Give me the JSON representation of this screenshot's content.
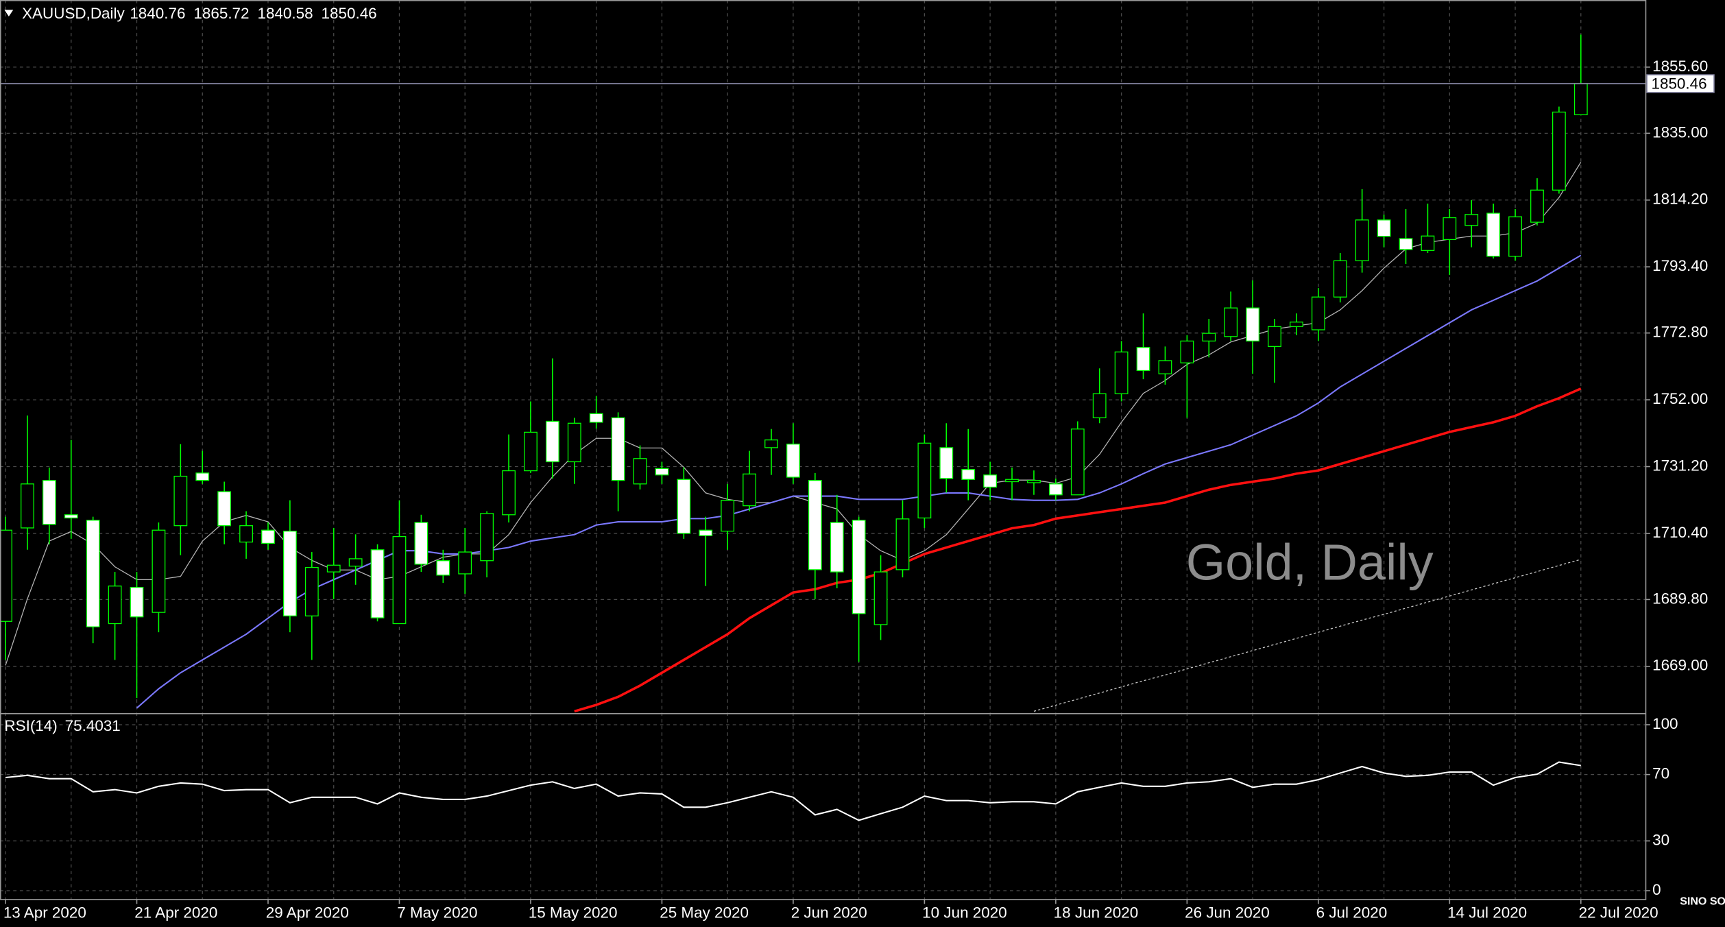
{
  "chart_data": [
    {
      "type": "candlestick",
      "title": "XAUUSD,Daily",
      "annotation": "Gold, Daily",
      "watermark": "SINO SOUND",
      "categories": [
        "13 Apr 2020",
        null,
        null,
        null,
        null,
        null,
        "21 Apr 2020",
        null,
        null,
        null,
        null,
        null,
        "29 Apr 2020",
        null,
        null,
        null,
        null,
        null,
        "7 May 2020",
        null,
        null,
        null,
        null,
        null,
        "15 May 2020",
        null,
        null,
        null,
        null,
        null,
        "25 May 2020",
        null,
        null,
        null,
        null,
        null,
        "2 Jun 2020",
        null,
        null,
        null,
        null,
        null,
        "10 Jun 2020",
        null,
        null,
        null,
        null,
        null,
        "18 Jun 2020",
        null,
        null,
        null,
        null,
        null,
        "26 Jun 2020",
        null,
        null,
        null,
        null,
        null,
        "6 Jul 2020",
        null,
        null,
        null,
        null,
        null,
        "14 Jul 2020",
        null,
        null,
        null,
        null,
        null,
        "22 Jul 2020"
      ],
      "open": [
        1683.0,
        1712.1,
        1726.9,
        1716.2,
        1714.5,
        1682.3,
        1693.6,
        1685.8,
        1712.8,
        1729.2,
        1723.4,
        1707.7,
        1711.4,
        1711.1,
        1684.7,
        1698.4,
        1700.2,
        1705.3,
        1682.3,
        1713.8,
        1701.9,
        1697.8,
        1701.9,
        1716.2,
        1729.9,
        1745.3,
        1732.7,
        1747.7,
        1746.4,
        1725.8,
        1730.6,
        1727.2,
        1711.4,
        1711.1,
        1719.0,
        1737.1,
        1738.2,
        1726.9,
        1713.8,
        1714.5,
        1682.0,
        1699.1,
        1715.2,
        1737.1,
        1730.3,
        1728.6,
        1726.5,
        1726.2,
        1725.8,
        1722.4,
        1746.4,
        1753.9,
        1768.3,
        1760.1,
        1763.5,
        1770.3,
        1771.7,
        1780.6,
        1768.6,
        1774.8,
        1773.8,
        1784.0,
        1795.3,
        1808.0,
        1802.2,
        1798.5,
        1801.9,
        1806.3,
        1810.1,
        1796.7,
        1807.3,
        1817.3,
        1840.76
      ],
      "high": [
        1715.6,
        1747.1,
        1730.9,
        1739.5,
        1715.6,
        1698.4,
        1698.4,
        1713.8,
        1738.2,
        1736.1,
        1726.5,
        1717.3,
        1713.8,
        1720.7,
        1704.6,
        1712.1,
        1710.1,
        1707.0,
        1720.7,
        1716.2,
        1705.3,
        1712.1,
        1717.3,
        1741.2,
        1751.5,
        1764.9,
        1746.4,
        1753.2,
        1748.1,
        1737.8,
        1732.7,
        1731.0,
        1715.6,
        1725.8,
        1736.1,
        1742.9,
        1744.7,
        1729.2,
        1722.4,
        1715.6,
        1703.6,
        1720.7,
        1741.2,
        1744.7,
        1742.9,
        1732.7,
        1730.9,
        1730.0,
        1727.5,
        1745.3,
        1761.8,
        1770.3,
        1778.9,
        1768.6,
        1772.1,
        1777.2,
        1785.7,
        1789.2,
        1777.2,
        1778.9,
        1786.8,
        1797.7,
        1817.6,
        1809.7,
        1811.4,
        1813.1,
        1811.4,
        1814.2,
        1813.1,
        1811.4,
        1821.0,
        1843.3,
        1865.72
      ],
      "low": [
        1671.0,
        1705.3,
        1707.0,
        1708.7,
        1676.2,
        1671.0,
        1659.1,
        1679.6,
        1703.6,
        1725.8,
        1707.0,
        1702.5,
        1705.3,
        1679.6,
        1671.0,
        1689.9,
        1694.4,
        1683.0,
        1682.3,
        1698.4,
        1695.0,
        1691.6,
        1696.7,
        1713.8,
        1729.2,
        1727.5,
        1725.8,
        1743.0,
        1717.3,
        1724.1,
        1725.8,
        1708.7,
        1694.0,
        1705.3,
        1717.3,
        1728.6,
        1725.8,
        1689.9,
        1693.3,
        1670.4,
        1677.2,
        1696.7,
        1712.1,
        1723.1,
        1720.7,
        1720.7,
        1720.7,
        1722.4,
        1720.7,
        1722.4,
        1744.7,
        1751.5,
        1758.4,
        1756.7,
        1746.4,
        1765.2,
        1770.3,
        1760.1,
        1757.3,
        1772.1,
        1770.3,
        1782.3,
        1791.6,
        1799.5,
        1794.3,
        1797.7,
        1790.9,
        1799.5,
        1796.0,
        1795.3,
        1806.3,
        1816.2,
        1840.58
      ],
      "close": [
        1711.4,
        1725.8,
        1713.2,
        1715.2,
        1681.3,
        1694.0,
        1684.4,
        1711.4,
        1728.2,
        1726.9,
        1712.8,
        1712.8,
        1707.3,
        1684.7,
        1699.8,
        1700.5,
        1702.5,
        1684.1,
        1709.4,
        1700.8,
        1697.4,
        1704.6,
        1716.6,
        1729.9,
        1741.9,
        1732.7,
        1744.7,
        1745.0,
        1726.9,
        1733.7,
        1728.6,
        1710.4,
        1709.7,
        1720.7,
        1728.9,
        1739.5,
        1727.9,
        1699.1,
        1698.4,
        1685.4,
        1698.4,
        1714.9,
        1738.5,
        1727.5,
        1727.2,
        1724.8,
        1727.2,
        1726.9,
        1722.4,
        1742.9,
        1753.9,
        1766.9,
        1761.1,
        1764.2,
        1770.3,
        1772.7,
        1780.6,
        1770.3,
        1774.8,
        1776.2,
        1784.0,
        1795.3,
        1808.0,
        1802.9,
        1798.8,
        1803.0,
        1808.7,
        1809.7,
        1796.7,
        1809.0,
        1817.3,
        1841.6,
        1850.46
      ],
      "bull_color": "#000000",
      "bear_color": "#ffffff",
      "wick_color": "#00ff00",
      "price_line_color": "#8a8aa8",
      "moving_averages": [
        {
          "color": "#b4b4b4",
          "width": 0.8,
          "dashed": false,
          "values": [
            1669.3,
            1690,
            1708,
            1711,
            1707,
            1700,
            1696,
            1696,
            1697,
            1708,
            1714,
            1716,
            1714,
            1706,
            1702,
            1699,
            1699,
            1696,
            1697,
            1700,
            1703,
            1704,
            1704,
            1710,
            1720,
            1728,
            1735,
            1740,
            1740,
            1737,
            1737,
            1731,
            1723,
            1721,
            1720,
            1720,
            1722,
            1720,
            1718,
            1710,
            1705,
            1702,
            1705,
            1710,
            1718,
            1726,
            1727,
            1727,
            1726,
            1728,
            1735,
            1745,
            1754,
            1758,
            1763,
            1766,
            1770,
            1772,
            1774,
            1775,
            1776,
            1780,
            1786,
            1793,
            1799,
            1801,
            1802,
            1803,
            1803,
            1804,
            1807,
            1815,
            1826
          ]
        },
        {
          "color": "#7b78ff",
          "width": 1.3,
          "dashed": false,
          "values": [
            null,
            null,
            null,
            null,
            null,
            null,
            1656,
            1662,
            1667,
            1671,
            1675,
            1679,
            1684,
            1689,
            1693,
            1696,
            1699,
            1702,
            1705,
            1705,
            1704,
            1704,
            1705,
            1706,
            1708,
            1709,
            1710,
            1713,
            1714,
            1714,
            1714,
            1715,
            1715,
            1716,
            1718,
            1720,
            1722,
            1722,
            1722,
            1721,
            1721,
            1721,
            1722,
            1723,
            1723,
            1722,
            1721,
            1720.7,
            1720.7,
            1721,
            1723,
            1725.8,
            1729,
            1732,
            1734,
            1736,
            1738,
            1741,
            1744,
            1747,
            1751,
            1756,
            1760,
            1764,
            1768,
            1772,
            1776,
            1780,
            1783,
            1786,
            1789,
            1793,
            1797
          ]
        },
        {
          "color": "#ff1010",
          "width": 2.2,
          "dashed": false,
          "values": [
            null,
            null,
            null,
            null,
            null,
            null,
            null,
            null,
            null,
            null,
            null,
            null,
            null,
            null,
            null,
            null,
            null,
            null,
            null,
            null,
            null,
            null,
            null,
            null,
            null,
            null,
            1655,
            1657,
            1659.5,
            1663,
            1667,
            1671,
            1675,
            1679,
            1684,
            1688,
            1692,
            1693,
            1695,
            1696,
            1698,
            1701,
            1704,
            1706,
            1708,
            1710,
            1712,
            1713,
            1715,
            1716,
            1717,
            1718,
            1719,
            1720,
            1722,
            1724,
            1725.5,
            1726.5,
            1727.5,
            1729,
            1730,
            1732,
            1734,
            1736,
            1738,
            1740,
            1742,
            1743.5,
            1745,
            1747,
            1750,
            1752.5,
            1755.5
          ]
        },
        {
          "color": "#c8c8c8",
          "width": 0.8,
          "dashed": true,
          "values": [
            null,
            null,
            null,
            null,
            null,
            null,
            null,
            null,
            null,
            null,
            null,
            null,
            null,
            null,
            null,
            null,
            null,
            null,
            null,
            null,
            null,
            null,
            null,
            null,
            null,
            null,
            null,
            null,
            null,
            null,
            null,
            null,
            null,
            null,
            null,
            null,
            null,
            null,
            null,
            null,
            null,
            null,
            null,
            null,
            null,
            null,
            null,
            1655.0,
            1656.9,
            1658.8,
            1660.7,
            1662.6,
            1664.5,
            1666.3,
            1668.2,
            1670.1,
            1672.0,
            1673.9,
            1675.8,
            1677.7,
            1679.6,
            1681.5,
            1683.4,
            1685.2,
            1687.1,
            1689.0,
            1690.9,
            1692.8,
            1694.7,
            1696.6,
            1698.5,
            1700.4,
            1702.3
          ]
        }
      ],
      "ylim": [
        1654.6,
        1876.5
      ],
      "yticks": [
        {
          "value": 1855.6,
          "label": "1855.60"
        },
        {
          "value": 1835,
          "label": "1835.00"
        },
        {
          "value": 1814.2,
          "label": "1814.20"
        },
        {
          "value": 1793.4,
          "label": "1793.40"
        },
        {
          "value": 1772.8,
          "label": "1772.80"
        },
        {
          "value": 1752,
          "label": "1752.00"
        },
        {
          "value": 1731.2,
          "label": "1731.20"
        },
        {
          "value": 1710.4,
          "label": "1710.40"
        },
        {
          "value": 1689.8,
          "label": "1689.80"
        },
        {
          "value": 1669,
          "label": "1669.00"
        }
      ],
      "grid": true
    },
    {
      "type": "line",
      "title": "RSI(14)",
      "color": "#ffffff",
      "values": [
        68.2,
        69.5,
        67.5,
        67.5,
        59.6,
        60.9,
        58.9,
        62.9,
        64.9,
        64.2,
        60.3,
        60.9,
        60.9,
        53,
        56.3,
        56.3,
        56.3,
        52.3,
        58.9,
        56.3,
        55,
        55,
        57,
        60.3,
        63.6,
        65.6,
        61.6,
        64.2,
        57,
        58.9,
        58.3,
        50.3,
        50.3,
        53,
        56.3,
        59.6,
        56.3,
        45.7,
        49,
        42.4,
        46.4,
        50.3,
        57,
        54.3,
        54.3,
        53,
        53.6,
        53.6,
        52.3,
        59.6,
        62.3,
        64.9,
        62.9,
        62.9,
        64.9,
        65.6,
        67.5,
        62.3,
        64.2,
        64.2,
        66.9,
        70.9,
        74.8,
        70.9,
        68.9,
        69.5,
        71.5,
        71.5,
        63.6,
        68.2,
        70.2,
        77.5,
        75.4031
      ],
      "ylim": [
        -5.3,
        106
      ],
      "yticks": [
        100,
        70,
        30,
        0
      ],
      "grid": true
    }
  ]
}
